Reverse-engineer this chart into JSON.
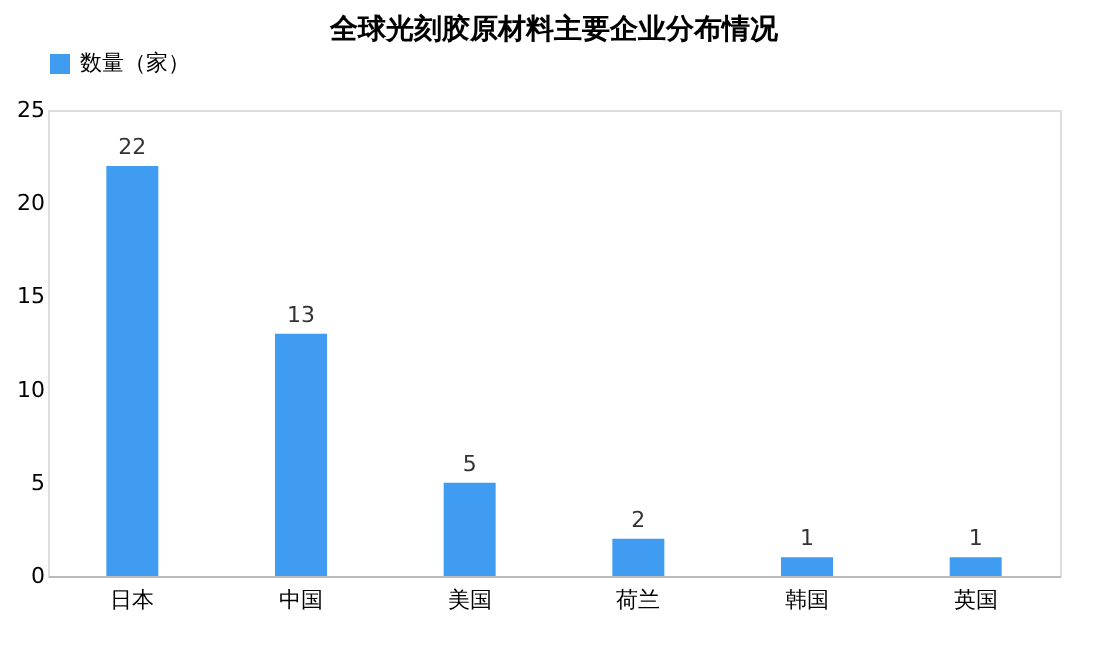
{
  "chart_data": {
    "type": "bar",
    "title": "全球光刻胶原材料主要企业分布情况",
    "categories": [
      "日本",
      "中国",
      "美国",
      "荷兰",
      "韩国",
      "英国"
    ],
    "series": [
      {
        "name": "数量（家）",
        "color": "#3f9cf0",
        "values": [
          22,
          13,
          5,
          2,
          1,
          1
        ]
      }
    ],
    "ylim": [
      0,
      25
    ],
    "yticks": [
      0,
      5,
      10,
      15,
      20,
      25
    ],
    "grid": false,
    "legend": "top",
    "data_labels": true
  }
}
